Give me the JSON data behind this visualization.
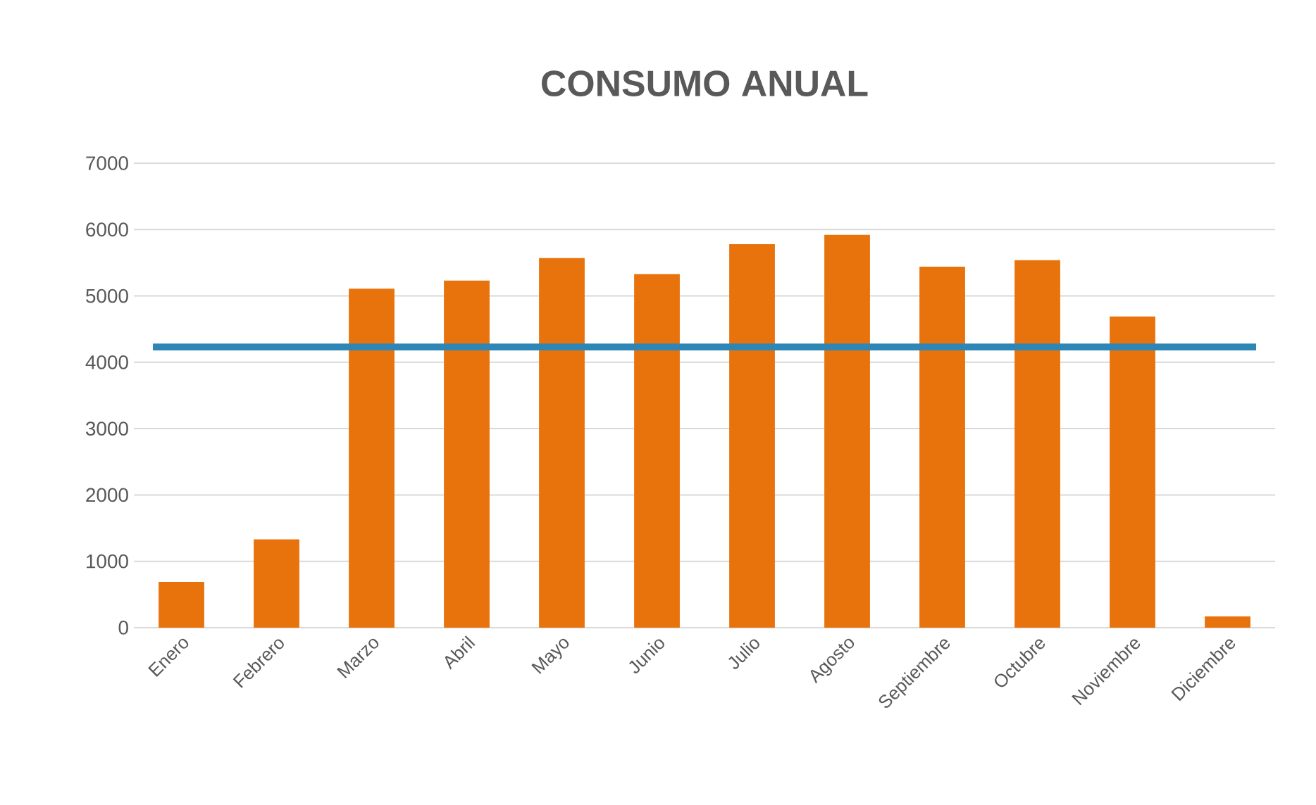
{
  "chart_data": {
    "type": "bar",
    "title": "CONSUMO ANUAL",
    "categories": [
      "Enero",
      "Febrero",
      "Marzo",
      "Abril",
      "Mayo",
      "Junio",
      "Julio",
      "Agosto",
      "Septiembre",
      "Octubre",
      "Noviembre",
      "Diciembre"
    ],
    "values": [
      690,
      1330,
      5110,
      5230,
      5570,
      5330,
      5780,
      5920,
      5440,
      5540,
      4690,
      170
    ],
    "color": "#e8730c",
    "ylim": [
      0,
      7000
    ],
    "yticks": [
      0,
      1000,
      2000,
      3000,
      4000,
      5000,
      6000,
      7000
    ],
    "grid": "y",
    "ref_lines": [
      {
        "axis": "y",
        "value": 4230,
        "color": "#2e86b7"
      }
    ]
  }
}
